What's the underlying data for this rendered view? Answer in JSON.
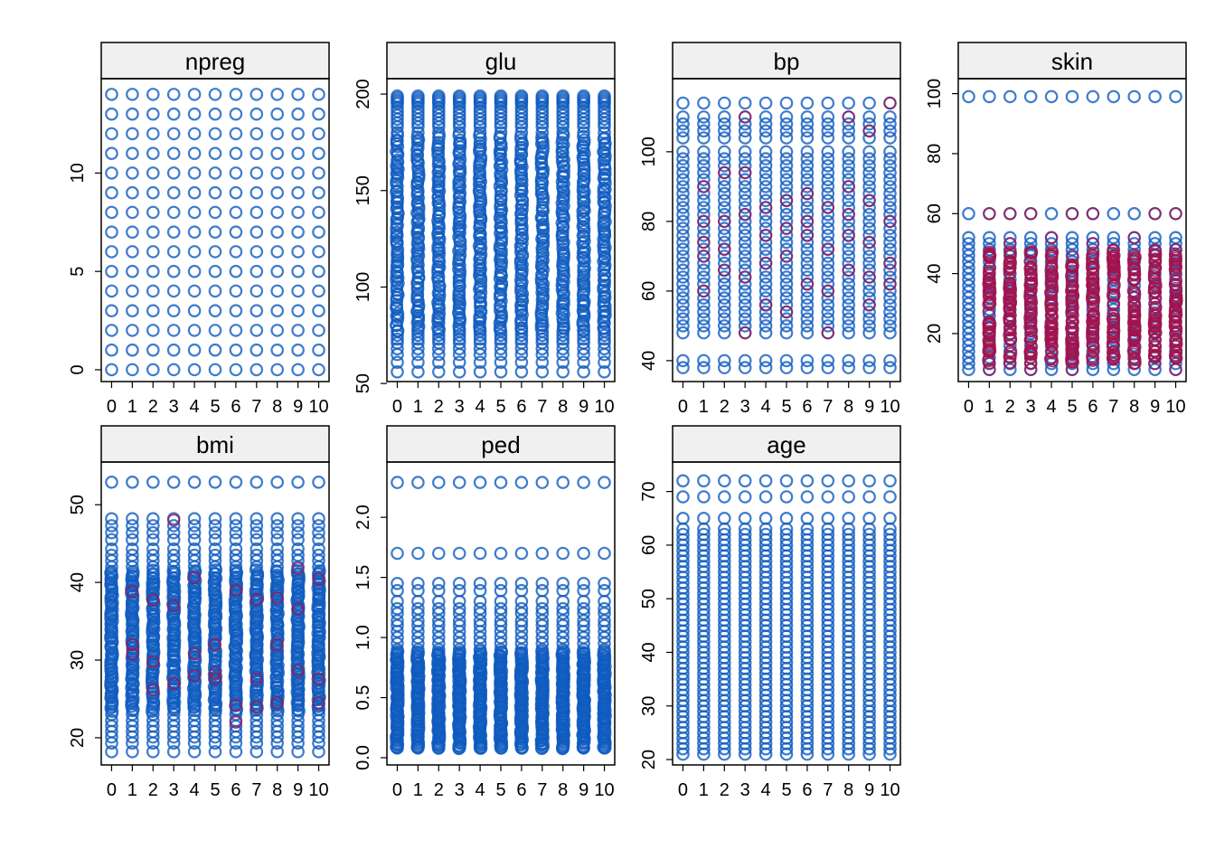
{
  "colors": {
    "obs": "#0f5bbf",
    "imp": "#a3134d",
    "strip_bg": "#f0f0f0",
    "axis": "#000000",
    "background": "#ffffff"
  },
  "chart_data": [
    {
      "type": "scatter",
      "title": "npreg",
      "x_tick_labels": [
        "0",
        "1",
        "2",
        "3",
        "4",
        "5",
        "6",
        "7",
        "8",
        "9",
        "10"
      ],
      "y_tick_labels": [
        "0",
        "5",
        "10"
      ],
      "y_ticks": [
        0,
        5,
        10
      ],
      "xlim": [
        -0.5,
        10.5
      ],
      "ylim": [
        -0.6,
        14.8
      ],
      "observed_values": [
        0,
        1,
        2,
        3,
        4,
        5,
        6,
        7,
        8,
        9,
        10,
        11,
        12,
        13,
        14
      ],
      "imputed_values": [],
      "sparse_observed": [
        11,
        13,
        14
      ],
      "dense_range": null
    },
    {
      "type": "scatter",
      "title": "glu",
      "x_tick_labels": [
        "0",
        "1",
        "2",
        "3",
        "4",
        "5",
        "6",
        "7",
        "8",
        "9",
        "10"
      ],
      "y_tick_labels": [
        "50",
        "100",
        "150",
        "200"
      ],
      "y_ticks": [
        50,
        100,
        150,
        200
      ],
      "xlim": [
        -0.5,
        10.5
      ],
      "ylim": [
        51,
        208
      ],
      "observed_values": [
        56,
        61,
        65,
        68,
        71,
        73,
        75,
        77,
        180,
        183,
        185,
        187,
        189,
        191,
        193,
        195,
        196,
        197,
        198,
        199
      ],
      "imputed_values": [],
      "sparse_observed": [
        56,
        61
      ],
      "dense_range": [
        78,
        178
      ]
    },
    {
      "type": "scatter",
      "title": "bp",
      "x_tick_labels": [
        "0",
        "1",
        "2",
        "3",
        "4",
        "5",
        "6",
        "7",
        "8",
        "9",
        "10"
      ],
      "y_tick_labels": [
        "40",
        "60",
        "80",
        "100"
      ],
      "y_ticks": [
        40,
        60,
        80,
        100
      ],
      "xlim": [
        -0.5,
        10.5
      ],
      "ylim": [
        34,
        121
      ],
      "observed_values": [
        38,
        40,
        48,
        50,
        52,
        54,
        56,
        58,
        60,
        62,
        64,
        66,
        68,
        70,
        72,
        74,
        76,
        78,
        80,
        82,
        84,
        86,
        88,
        90,
        92,
        94,
        96,
        98,
        100,
        104,
        106,
        108,
        110,
        114
      ],
      "imputed_values": [
        [
          1,
          70
        ],
        [
          1,
          80
        ],
        [
          1,
          90
        ],
        [
          1,
          60
        ],
        [
          1,
          74
        ],
        [
          2,
          66
        ],
        [
          2,
          80
        ],
        [
          2,
          94
        ],
        [
          2,
          72
        ],
        [
          3,
          48
        ],
        [
          3,
          82
        ],
        [
          3,
          94
        ],
        [
          3,
          64
        ],
        [
          3,
          110
        ],
        [
          4,
          76
        ],
        [
          4,
          56
        ],
        [
          4,
          68
        ],
        [
          4,
          84
        ],
        [
          5,
          54
        ],
        [
          5,
          78
        ],
        [
          5,
          86
        ],
        [
          5,
          70
        ],
        [
          6,
          76
        ],
        [
          6,
          88
        ],
        [
          6,
          62
        ],
        [
          6,
          80
        ],
        [
          7,
          60
        ],
        [
          7,
          72
        ],
        [
          7,
          84
        ],
        [
          7,
          48
        ],
        [
          8,
          82
        ],
        [
          8,
          90
        ],
        [
          8,
          66
        ],
        [
          8,
          110
        ],
        [
          8,
          76
        ],
        [
          9,
          56
        ],
        [
          9,
          74
        ],
        [
          9,
          86
        ],
        [
          9,
          106
        ],
        [
          9,
          64
        ],
        [
          10,
          68
        ],
        [
          10,
          114
        ],
        [
          10,
          80
        ],
        [
          10,
          62
        ]
      ],
      "sparse_observed": [
        38,
        40
      ],
      "dense_range": null
    },
    {
      "type": "scatter",
      "title": "skin",
      "x_tick_labels": [
        "0",
        "1",
        "2",
        "3",
        "4",
        "5",
        "6",
        "7",
        "8",
        "9",
        "10"
      ],
      "y_tick_labels": [
        "20",
        "40",
        "60",
        "80",
        "100"
      ],
      "y_ticks": [
        20,
        40,
        60,
        80,
        100
      ],
      "xlim": [
        -0.5,
        10.5
      ],
      "ylim": [
        4,
        105
      ],
      "observed_values": [
        8,
        10,
        12,
        14,
        16,
        18,
        20,
        22,
        24,
        26,
        28,
        30,
        32,
        34,
        36,
        38,
        40,
        42,
        44,
        46,
        48,
        50,
        52,
        60,
        99
      ],
      "imputed_values": [
        [
          1,
          60
        ],
        [
          2,
          60
        ],
        [
          3,
          60
        ],
        [
          5,
          60
        ],
        [
          6,
          60
        ],
        [
          9,
          60
        ],
        [
          10,
          60
        ],
        [
          2,
          50
        ],
        [
          4,
          52
        ],
        [
          6,
          50
        ],
        [
          8,
          52
        ],
        [
          3,
          8
        ],
        [
          8,
          10
        ],
        [
          10,
          8
        ],
        [
          1,
          8
        ],
        [
          5,
          8
        ]
      ],
      "imputed_dense_range": [
        10,
        48
      ],
      "sparse_observed": [
        60,
        99
      ],
      "dense_range": null
    },
    {
      "type": "scatter",
      "title": "bmi",
      "x_tick_labels": [
        "0",
        "1",
        "2",
        "3",
        "4",
        "5",
        "6",
        "7",
        "8",
        "9",
        "10"
      ],
      "y_tick_labels": [
        "20",
        "30",
        "40",
        "50"
      ],
      "y_ticks": [
        20,
        30,
        40,
        50
      ],
      "xlim": [
        -0.5,
        10.5
      ],
      "ylim": [
        16.5,
        55.5
      ],
      "observed_values": [
        18.2,
        19.3,
        20.1,
        20.8,
        21.5,
        22.2,
        23.0,
        42.0,
        42.8,
        43.5,
        44.3,
        45.5,
        46.4,
        47.3,
        48.2,
        52.9
      ],
      "imputed_values": [
        [
          1,
          38.8
        ],
        [
          1,
          32.0
        ],
        [
          1,
          30.8
        ],
        [
          2,
          37.7
        ],
        [
          2,
          29.8
        ],
        [
          2,
          26.2
        ],
        [
          3,
          48.0
        ],
        [
          3,
          37.0
        ],
        [
          3,
          27.0
        ],
        [
          4,
          40.6
        ],
        [
          4,
          30.8
        ],
        [
          4,
          28.0
        ],
        [
          5,
          32.0
        ],
        [
          5,
          28.3
        ],
        [
          5,
          27.6
        ],
        [
          6,
          39.0
        ],
        [
          6,
          24.2
        ],
        [
          6,
          22.0
        ],
        [
          7,
          37.8
        ],
        [
          7,
          27.6
        ],
        [
          7,
          24.0
        ],
        [
          8,
          38.0
        ],
        [
          8,
          32.0
        ],
        [
          8,
          24.5
        ],
        [
          9,
          41.8
        ],
        [
          9,
          36.6
        ],
        [
          9,
          28.6
        ],
        [
          10,
          40.4
        ],
        [
          10,
          27.6
        ],
        [
          10,
          24.5
        ]
      ],
      "sparse_observed": [
        52.9
      ],
      "dense_range": [
        23.5,
        41.5
      ]
    },
    {
      "type": "scatter",
      "title": "ped",
      "x_tick_labels": [
        "0",
        "1",
        "2",
        "3",
        "4",
        "5",
        "6",
        "7",
        "8",
        "9",
        "10"
      ],
      "y_tick_labels": [
        "0.0",
        "0.5",
        "1.0",
        "1.5",
        "2.0"
      ],
      "y_ticks": [
        0.0,
        0.5,
        1.0,
        1.5,
        2.0
      ],
      "xlim": [
        -0.5,
        10.5
      ],
      "ylim": [
        -0.06,
        2.46
      ],
      "observed_values": [
        0.08,
        0.9,
        0.95,
        1.0,
        1.05,
        1.1,
        1.14,
        1.2,
        1.24,
        1.3,
        1.39,
        1.45,
        1.7,
        2.29
      ],
      "imputed_values": [],
      "sparse_observed": [
        1.7,
        2.29
      ],
      "dense_range": [
        0.08,
        0.88
      ]
    },
    {
      "type": "scatter",
      "title": "age",
      "x_tick_labels": [
        "0",
        "1",
        "2",
        "3",
        "4",
        "5",
        "6",
        "7",
        "8",
        "9",
        "10"
      ],
      "y_tick_labels": [
        "20",
        "30",
        "40",
        "50",
        "60",
        "70"
      ],
      "y_ticks": [
        20,
        30,
        40,
        50,
        60,
        70
      ],
      "xlim": [
        -0.5,
        10.5
      ],
      "ylim": [
        19,
        75.5
      ],
      "observed_values": [
        21,
        22,
        23,
        24,
        25,
        26,
        27,
        28,
        29,
        30,
        31,
        32,
        33,
        34,
        35,
        36,
        37,
        38,
        39,
        40,
        41,
        42,
        43,
        44,
        45,
        46,
        47,
        48,
        49,
        50,
        51,
        52,
        53,
        54,
        55,
        56,
        57,
        58,
        59,
        60,
        61,
        62,
        63,
        65,
        69,
        72
      ],
      "imputed_values": [],
      "sparse_observed": [
        65,
        69,
        72
      ],
      "dense_range": null
    }
  ]
}
